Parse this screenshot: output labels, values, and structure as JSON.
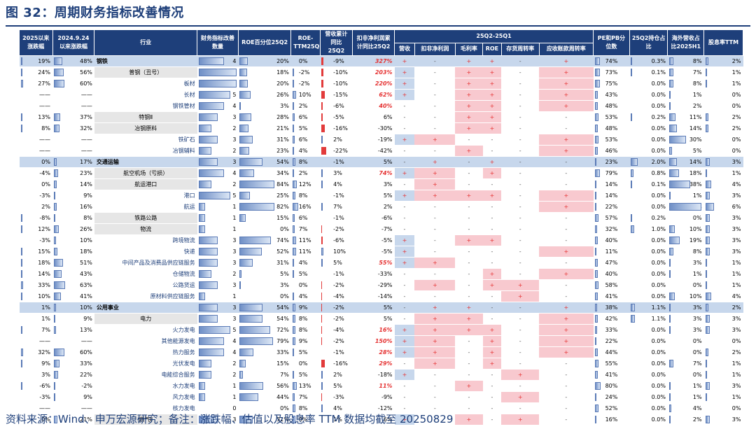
{
  "title": "图 32：周期财务指标改善情况",
  "source": "资料来源：Wind、申万宏源研究；备注：涨跌幅、估值以及股息率 TTM 数据均截至 20250829",
  "headers": {
    "c1": "2025以来涨跌幅",
    "c2": "2024.9.24以来涨跌幅",
    "ind": "行业",
    "cnt": "财务指标改善数量",
    "roe": "ROE百分位25Q2",
    "roettm": "ROE-TTM25Q2",
    "rev": "营收累计同比25Q2",
    "np": "扣非净利润累计同比25Q2",
    "q": "25Q2-25Q1",
    "q_sub": [
      "营收",
      "扣非净利润",
      "毛利率",
      "ROE",
      "存货周转率",
      "应收账款周转率"
    ],
    "pe": "PE和PB分位数",
    "hold": "25Q2持仓占比",
    "ovs": "海外营收占比2025H1",
    "div": "股息率TTM"
  },
  "rows": [
    {
      "c1": "19%",
      "c2": "48%",
      "ind": "钢铁",
      "lvl": 1,
      "cnt": "4",
      "roe": "20%",
      "roettm": "0%",
      "rev": "-9%",
      "np": "327%",
      "npr": true,
      "s": [
        "+",
        "-",
        "+",
        "+",
        "-",
        "+"
      ],
      "pe": "74%",
      "hold": "0.3%",
      "ovs": "8%",
      "div": "2%"
    },
    {
      "c1": "24%",
      "c2": "56%",
      "ind": "普钢（丑号）",
      "lvl": 2,
      "cnt": "6",
      "roe": "18%",
      "roettm": "-2%",
      "rev": "-10%",
      "np": "203%",
      "npr": true,
      "s": [
        "+",
        "-",
        "+",
        "+",
        "-",
        "+"
      ],
      "pe": "73%",
      "hold": "0.1%",
      "ovs": "7%",
      "div": "1%"
    },
    {
      "c1": "27%",
      "c2": "60%",
      "ind": "板材",
      "lvl": 3,
      "cnt": "6",
      "roe": "20%",
      "roettm": "-2%",
      "rev": "-10%",
      "np": "220%",
      "npr": true,
      "s": [
        "+",
        "-",
        "+",
        "+",
        "-",
        "+"
      ],
      "pe": "75%",
      "hold": "0.0%",
      "ovs": "8%",
      "div": "1%"
    },
    {
      "c1": "——",
      "c2": "——",
      "ind": "长材",
      "lvl": 3,
      "cnt": "5",
      "roe": "26%",
      "roettm": "10%",
      "rev": "-15%",
      "np": "62%",
      "npr": true,
      "s": [
        "+",
        "-",
        "+",
        "+",
        "-",
        "+"
      ],
      "pe": "43%",
      "hold": "0.0%",
      "ovs": "1%",
      "div": "0%"
    },
    {
      "c1": "——",
      "c2": "——",
      "ind": "钢铁管材",
      "lvl": 3,
      "cnt": "4",
      "roe": "3%",
      "roettm": "2%",
      "rev": "-6%",
      "np": "40%",
      "npr": true,
      "s": [
        "-",
        "-",
        "+",
        "+",
        "-",
        "+"
      ],
      "pe": "48%",
      "hold": "0.0%",
      "ovs": "2%",
      "div": "0%"
    },
    {
      "c1": "13%",
      "c2": "37%",
      "ind": "特钢Ⅱ",
      "lvl": 2,
      "cnt": "3",
      "roe": "28%",
      "roettm": "6%",
      "rev": "-5%",
      "np": "6%",
      "npr": false,
      "s": [
        "-",
        "-",
        "+",
        "+",
        "-",
        "-"
      ],
      "pe": "53%",
      "hold": "0.2%",
      "ovs": "11%",
      "div": "2%"
    },
    {
      "c1": "8%",
      "c2": "32%",
      "ind": "冶钢原料",
      "lvl": 2,
      "cnt": "2",
      "roe": "21%",
      "roettm": "5%",
      "rev": "-16%",
      "np": "-30%",
      "npr": false,
      "s": [
        "-",
        "-",
        "+",
        "+",
        "-",
        "-"
      ],
      "pe": "48%",
      "hold": "0.0%",
      "ovs": "14%",
      "div": "2%"
    },
    {
      "c1": "——",
      "c2": "——",
      "ind": "铁矿石",
      "lvl": 3,
      "cnt": "3",
      "roe": "31%",
      "roettm": "6%",
      "rev": "2%",
      "np": "-19%",
      "npr": false,
      "s": [
        "+",
        "+",
        "-",
        "-",
        "-",
        "+"
      ],
      "pe": "53%",
      "hold": "0.0%",
      "ovs": "30%",
      "div": "0%"
    },
    {
      "c1": "——",
      "c2": "——",
      "ind": "冶钢辅料",
      "lvl": 3,
      "cnt": "2",
      "roe": "23%",
      "roettm": "4%",
      "rev": "-22%",
      "np": "-42%",
      "npr": false,
      "s": [
        "-",
        "-",
        "+",
        "-",
        "-",
        "+"
      ],
      "pe": "46%",
      "hold": "0.0%",
      "ovs": "5%",
      "div": "0%"
    },
    {
      "c1": "0%",
      "c2": "17%",
      "ind": "交通运输",
      "lvl": 1,
      "cnt": "3",
      "roe": "54%",
      "roettm": "8%",
      "rev": "-1%",
      "np": "5%",
      "npr": false,
      "s": [
        "-",
        "+",
        "-",
        "+",
        "-",
        "-"
      ],
      "pe": "23%",
      "hold": "2.0%",
      "ovs": "14%",
      "div": "3%"
    },
    {
      "c1": "-4%",
      "c2": "23%",
      "ind": "航空机场（亏损）",
      "lvl": 2,
      "cnt": "4",
      "roe": "34%",
      "roettm": "2%",
      "rev": "3%",
      "np": "74%",
      "npr": true,
      "s": [
        "+",
        "+",
        "-",
        "+",
        "-",
        "-"
      ],
      "pe": "79%",
      "hold": "0.8%",
      "ovs": "18%",
      "div": "1%"
    },
    {
      "c1": "0%",
      "c2": "14%",
      "ind": "航运港口",
      "lvl": 2,
      "cnt": "2",
      "roe": "84%",
      "roettm": "12%",
      "rev": "4%",
      "np": "3%",
      "npr": false,
      "s": [
        "-",
        "+",
        "-",
        "-",
        "-",
        "-"
      ],
      "pe": "14%",
      "hold": "0.1%",
      "ovs": "38%",
      "div": "4%"
    },
    {
      "c1": "-3%",
      "c2": "9%",
      "ind": "港口",
      "lvl": 3,
      "cnt": "5",
      "roe": "25%",
      "roettm": "8%",
      "rev": "-1%",
      "np": "5%",
      "npr": false,
      "s": [
        "+",
        "+",
        "+",
        "+",
        "-",
        "+"
      ],
      "pe": "14%",
      "hold": "0.0%",
      "ovs": "1%",
      "div": "3%"
    },
    {
      "c1": "2%",
      "c2": "16%",
      "ind": "航运",
      "lvl": 3,
      "cnt": "1",
      "roe": "82%",
      "roettm": "16%",
      "rev": "7%",
      "np": "2%",
      "npr": false,
      "s": [
        "-",
        "-",
        "-",
        "-",
        "-",
        "+"
      ],
      "pe": "22%",
      "hold": "0.0%",
      "ovs": "58%",
      "div": "6%"
    },
    {
      "c1": "-8%",
      "c2": "8%",
      "ind": "铁路公路",
      "lvl": 2,
      "cnt": "1",
      "roe": "15%",
      "roettm": "6%",
      "rev": "-1%",
      "np": "-6%",
      "npr": false,
      "s": [
        "-",
        "-",
        "-",
        "-",
        "-",
        "-"
      ],
      "pe": "57%",
      "hold": "0.2%",
      "ovs": "0%",
      "div": "3%"
    },
    {
      "c1": "12%",
      "c2": "26%",
      "ind": "物流",
      "lvl": 2,
      "cnt": "1",
      "roe": "0%",
      "roettm": "7%",
      "rev": "-2%",
      "np": "-7%",
      "npr": false,
      "s": [
        "-",
        "-",
        "-",
        "-",
        "-",
        "-"
      ],
      "pe": "32%",
      "hold": "1.0%",
      "ovs": "10%",
      "div": "3%"
    },
    {
      "c1": "-3%",
      "c2": "10%",
      "ind": "跨境物流",
      "lvl": 3,
      "cnt": "3",
      "roe": "74%",
      "roettm": "11%",
      "rev": "-6%",
      "np": "-5%",
      "npr": false,
      "s": [
        "+",
        "-",
        "+",
        "+",
        "-",
        "-"
      ],
      "pe": "40%",
      "hold": "0.0%",
      "ovs": "19%",
      "div": "3%"
    },
    {
      "c1": "15%",
      "c2": "18%",
      "ind": "快递",
      "lvl": 3,
      "cnt": "3",
      "roe": "52%",
      "roettm": "11%",
      "rev": "10%",
      "np": "-5%",
      "npr": false,
      "s": [
        "+",
        "-",
        "-",
        "-",
        "-",
        "+"
      ],
      "pe": "11%",
      "hold": "0.0%",
      "ovs": "8%",
      "div": "3%"
    },
    {
      "c1": "18%",
      "c2": "51%",
      "ind": "中间产品及消费品供应链服务",
      "lvl": 3,
      "cnt": "3",
      "roe": "31%",
      "roettm": "4%",
      "rev": "5%",
      "np": "55%",
      "npr": true,
      "s": [
        "+",
        "+",
        "-",
        "-",
        "-",
        "-"
      ],
      "pe": "47%",
      "hold": "0.0%",
      "ovs": "3%",
      "div": "1%"
    },
    {
      "c1": "14%",
      "c2": "43%",
      "ind": "仓储物流",
      "lvl": 3,
      "cnt": "2",
      "roe": "5%",
      "roettm": "5%",
      "rev": "-1%",
      "np": "-33%",
      "npr": false,
      "s": [
        "-",
        "-",
        "-",
        "+",
        "-",
        "+"
      ],
      "pe": "40%",
      "hold": "0.0%",
      "ovs": "1%",
      "div": "1%"
    },
    {
      "c1": "33%",
      "c2": "63%",
      "ind": "公路货运",
      "lvl": 3,
      "cnt": "3",
      "roe": "3%",
      "roettm": "0%",
      "rev": "-2%",
      "np": "-29%",
      "npr": false,
      "s": [
        "-",
        "+",
        "-",
        "+",
        "+",
        "-"
      ],
      "pe": "58%",
      "hold": "0.0%",
      "ovs": "0%",
      "div": "1%"
    },
    {
      "c1": "10%",
      "c2": "41%",
      "ind": "原材料供应链服务",
      "lvl": 3,
      "cnt": "1",
      "roe": "0%",
      "roettm": "4%",
      "rev": "-4%",
      "np": "-14%",
      "npr": false,
      "s": [
        "-",
        "-",
        "-",
        "-",
        "+",
        "-"
      ],
      "pe": "41%",
      "hold": "0.0%",
      "ovs": "10%",
      "div": "4%"
    },
    {
      "c1": "1%",
      "c2": "10%",
      "ind": "公用事业",
      "lvl": 1,
      "cnt": "3",
      "roe": "54%",
      "roettm": "9%",
      "rev": "-2%",
      "np": "5%",
      "npr": false,
      "s": [
        "-",
        "+",
        "+",
        "-",
        "-",
        "+"
      ],
      "pe": "38%",
      "hold": "1.1%",
      "ovs": "3%",
      "div": "2%"
    },
    {
      "c1": "1%",
      "c2": "9%",
      "ind": "电力",
      "lvl": 2,
      "cnt": "3",
      "roe": "54%",
      "roettm": "8%",
      "rev": "-2%",
      "np": "5%",
      "npr": false,
      "s": [
        "-",
        "+",
        "+",
        "-",
        "-",
        "+"
      ],
      "pe": "42%",
      "hold": "1.1%",
      "ovs": "3%",
      "div": "3%"
    },
    {
      "c1": "7%",
      "c2": "13%",
      "ind": "火力发电",
      "lvl": 3,
      "cnt": "5",
      "roe": "72%",
      "roettm": "8%",
      "rev": "-4%",
      "np": "16%",
      "npr": true,
      "s": [
        "+",
        "+",
        "+",
        "+",
        "-",
        "+"
      ],
      "pe": "33%",
      "hold": "0.0%",
      "ovs": "3%",
      "div": "3%"
    },
    {
      "c1": "——",
      "c2": "——",
      "ind": "其他能源发电",
      "lvl": 3,
      "cnt": "4",
      "roe": "79%",
      "roettm": "9%",
      "rev": "-2%",
      "np": "150%",
      "npr": true,
      "s": [
        "+",
        "+",
        "-",
        "+",
        "-",
        "+"
      ],
      "pe": "22%",
      "hold": "0.0%",
      "ovs": "0%",
      "div": "0%"
    },
    {
      "c1": "32%",
      "c2": "60%",
      "ind": "热力服务",
      "lvl": 3,
      "cnt": "4",
      "roe": "33%",
      "roettm": "5%",
      "rev": "-1%",
      "np": "28%",
      "npr": true,
      "s": [
        "+",
        "+",
        "-",
        "+",
        "-",
        "+"
      ],
      "pe": "44%",
      "hold": "0.0%",
      "ovs": "0%",
      "div": "2%"
    },
    {
      "c1": "9%",
      "c2": "33%",
      "ind": "光伏发电",
      "lvl": 3,
      "cnt": "2",
      "roe": "15%",
      "roettm": "0%",
      "rev": "-16%",
      "np": "29%",
      "npr": true,
      "s": [
        "-",
        "+",
        "-",
        "+",
        "-",
        "-"
      ],
      "pe": "55%",
      "hold": "0.0%",
      "ovs": "7%",
      "div": "1%"
    },
    {
      "c1": "3%",
      "c2": "22%",
      "ind": "电能综合服务",
      "lvl": 3,
      "cnt": "2",
      "roe": "7%",
      "roettm": "5%",
      "rev": "2%",
      "np": "-18%",
      "npr": false,
      "s": [
        "+",
        "-",
        "-",
        "-",
        "+",
        "-"
      ],
      "pe": "41%",
      "hold": "0.0%",
      "ovs": "0%",
      "div": "1%"
    },
    {
      "c1": "-6%",
      "c2": "-2%",
      "ind": "水力发电",
      "lvl": 3,
      "cnt": "1",
      "roe": "56%",
      "roettm": "13%",
      "rev": "5%",
      "np": "11%",
      "npr": true,
      "s": [
        "-",
        "-",
        "+",
        "-",
        "-",
        "-"
      ],
      "pe": "80%",
      "hold": "0.0%",
      "ovs": "1%",
      "div": "3%"
    },
    {
      "c1": "-3%",
      "c2": "9%",
      "ind": "风力发电",
      "lvl": 3,
      "cnt": "1",
      "roe": "44%",
      "roettm": "7%",
      "rev": "-3%",
      "np": "-9%",
      "npr": false,
      "s": [
        "-",
        "-",
        "-",
        "-",
        "+",
        "-"
      ],
      "pe": "24%",
      "hold": "0.0%",
      "ovs": "1%",
      "div": "1%"
    },
    {
      "c1": "——",
      "c2": "——",
      "ind": "核力发电",
      "lvl": 3,
      "cnt": "0",
      "roe": "0%",
      "roettm": "8%",
      "rev": "4%",
      "np": "-12%",
      "npr": false,
      "s": [
        "-",
        "-",
        "-",
        "-",
        "-",
        "-"
      ],
      "pe": "52%",
      "hold": "0.0%",
      "ovs": "4%",
      "div": "0%"
    },
    {
      "c1": "0%",
      "c2": "21%",
      "ind": "燃气Ⅱ",
      "lvl": 2,
      "cnt": "3",
      "roe": "31%",
      "roettm": "9%",
      "rev": "1%",
      "np": "6%",
      "npr": false,
      "s": [
        "+",
        "-",
        "+",
        "-",
        "+",
        "-"
      ],
      "pe": "16%",
      "hold": "0.0%",
      "ovs": "2%",
      "div": "3%"
    }
  ]
}
